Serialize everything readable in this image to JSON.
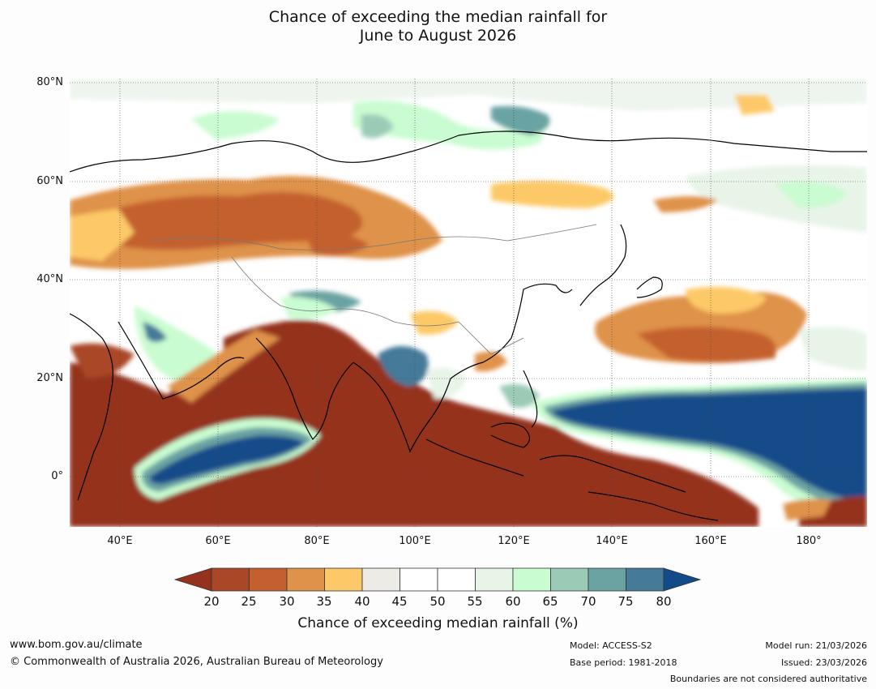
{
  "title": {
    "line1": "Chance of exceeding the median rainfall for",
    "line2": "June to August 2026"
  },
  "map": {
    "lat_labels": [
      "80°N",
      "60°N",
      "40°N",
      "20°N",
      "0°"
    ],
    "lon_labels": [
      "40°E",
      "60°E",
      "80°E",
      "100°E",
      "120°E",
      "140°E",
      "160°E",
      "180°"
    ]
  },
  "colorbar": {
    "ticks": [
      "20",
      "25",
      "30",
      "35",
      "40",
      "45",
      "50",
      "55",
      "60",
      "65",
      "70",
      "75",
      "80"
    ],
    "colors": [
      "#94321f",
      "#a94726",
      "#c4602f",
      "#df9249",
      "#fdc968",
      "#ecebe6",
      "#ffffff",
      "#ffffff",
      "#e8f4e8",
      "#c9fcd0",
      "#9bcbb7",
      "#6ba3a3",
      "#457a98",
      "#124b89"
    ],
    "label": "Chance of exceeding median rainfall (%)"
  },
  "footer": {
    "website": "www.bom.gov.au/climate",
    "copyright": "© Commonwealth of Australia 2026, Australian Bureau of Meteorology",
    "model": "Model: ACCESS-S2",
    "base_period": "Base period: 1981-2018",
    "model_run": "Model run: 21/03/2026",
    "issued": "Issued: 23/03/2026",
    "disclaimer": "Boundaries are not considered authoritative"
  }
}
